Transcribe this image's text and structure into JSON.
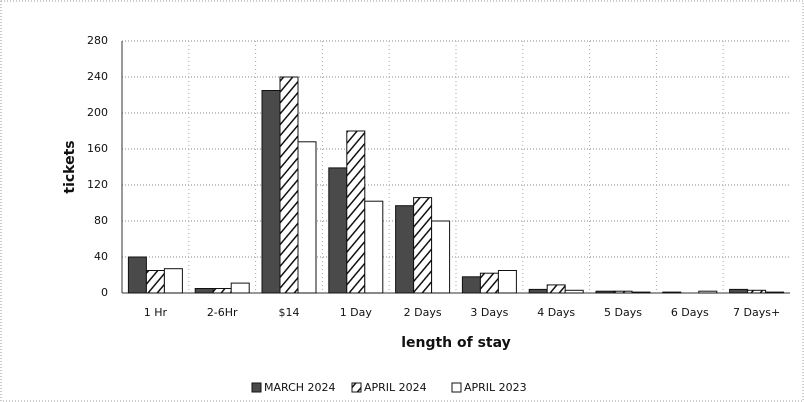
{
  "chart_data": {
    "type": "bar",
    "categories": [
      "1 Hr",
      "2-6Hr",
      "$14",
      "1 Day",
      "2 Days",
      "3 Days",
      "4 Days",
      "5 Days",
      "6 Days",
      "7 Days+"
    ],
    "series": [
      {
        "name": "MARCH 2024",
        "color": "#4a4a4a",
        "hatch": false,
        "values": [
          40,
          5,
          225,
          139,
          97,
          18,
          4,
          2,
          1,
          4
        ]
      },
      {
        "name": "APRIL 2024",
        "color": "#ffffff",
        "hatch": true,
        "values": [
          25,
          5,
          240,
          180,
          106,
          22,
          9,
          2,
          0,
          3
        ]
      },
      {
        "name": "APRIL 2023",
        "color": "#ffffff",
        "hatch": false,
        "values": [
          27,
          11,
          168,
          102,
          80,
          25,
          3,
          1,
          2,
          1
        ]
      }
    ],
    "xlabel": "length of stay",
    "ylabel": "tickets",
    "ylim": [
      0,
      280
    ],
    "yticks": [
      0,
      40,
      80,
      120,
      160,
      200,
      240,
      280
    ],
    "grid": true,
    "legend": "bottom"
  }
}
